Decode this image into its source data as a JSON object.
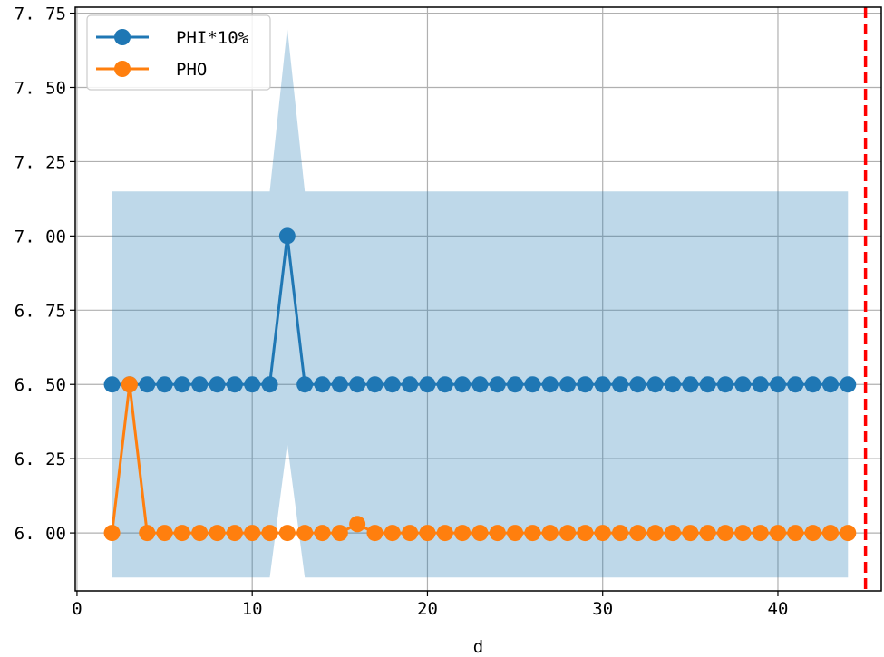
{
  "chart_data": {
    "type": "line",
    "title": "",
    "xlabel": "d",
    "ylabel": "",
    "xlim": [
      -0.1,
      45.9
    ],
    "ylim": [
      5.805,
      7.77
    ],
    "xticks": [
      0,
      10,
      20,
      30,
      40
    ],
    "yticks": [
      6.0,
      6.25,
      6.5,
      6.75,
      7.0,
      7.25,
      7.5,
      7.75
    ],
    "ytick_labels": [
      "6. 00",
      "6. 25",
      "6. 50",
      "6. 75",
      "7. 00",
      "7. 25",
      "7. 50",
      "7. 75"
    ],
    "xtick_labels": [
      "0",
      "10",
      "20",
      "30",
      "40"
    ],
    "grid": true,
    "legend_position": "top-left",
    "x": [
      2,
      3,
      4,
      5,
      6,
      7,
      8,
      9,
      10,
      11,
      12,
      13,
      14,
      15,
      16,
      17,
      18,
      19,
      20,
      21,
      22,
      23,
      24,
      25,
      26,
      27,
      28,
      29,
      30,
      31,
      32,
      33,
      34,
      35,
      36,
      37,
      38,
      39,
      40,
      41,
      42,
      43,
      44
    ],
    "series": [
      {
        "name": "PHI*10%",
        "color": "#1f77b4",
        "values": [
          6.5,
          6.5,
          6.5,
          6.5,
          6.5,
          6.5,
          6.5,
          6.5,
          6.5,
          6.5,
          7.0,
          6.5,
          6.5,
          6.5,
          6.5,
          6.5,
          6.5,
          6.5,
          6.5,
          6.5,
          6.5,
          6.5,
          6.5,
          6.5,
          6.5,
          6.5,
          6.5,
          6.5,
          6.5,
          6.5,
          6.5,
          6.5,
          6.5,
          6.5,
          6.5,
          6.5,
          6.5,
          6.5,
          6.5,
          6.5,
          6.5,
          6.5,
          6.5
        ]
      },
      {
        "name": "PHO",
        "color": "#ff7f0e",
        "values": [
          6.0,
          6.5,
          6.0,
          6.0,
          6.0,
          6.0,
          6.0,
          6.0,
          6.0,
          6.0,
          6.0,
          6.0,
          6.0,
          6.0,
          6.03,
          6.0,
          6.0,
          6.0,
          6.0,
          6.0,
          6.0,
          6.0,
          6.0,
          6.0,
          6.0,
          6.0,
          6.0,
          6.0,
          6.0,
          6.0,
          6.0,
          6.0,
          6.0,
          6.0,
          6.0,
          6.0,
          6.0,
          6.0,
          6.0,
          6.0,
          6.0,
          6.0,
          6.0
        ]
      }
    ],
    "band": {
      "color": "#1f77b4",
      "opacity": 0.29,
      "points": [
        {
          "x": 2,
          "lower": 5.85,
          "upper": 7.15
        },
        {
          "x": 11,
          "lower": 5.85,
          "upper": 7.15
        },
        {
          "x": 12,
          "lower": 6.3,
          "upper": 7.7
        },
        {
          "x": 13,
          "lower": 5.85,
          "upper": 7.15
        },
        {
          "x": 44,
          "lower": 5.85,
          "upper": 7.15
        }
      ]
    },
    "vline": {
      "x": 45,
      "color": "#ff0000"
    }
  }
}
